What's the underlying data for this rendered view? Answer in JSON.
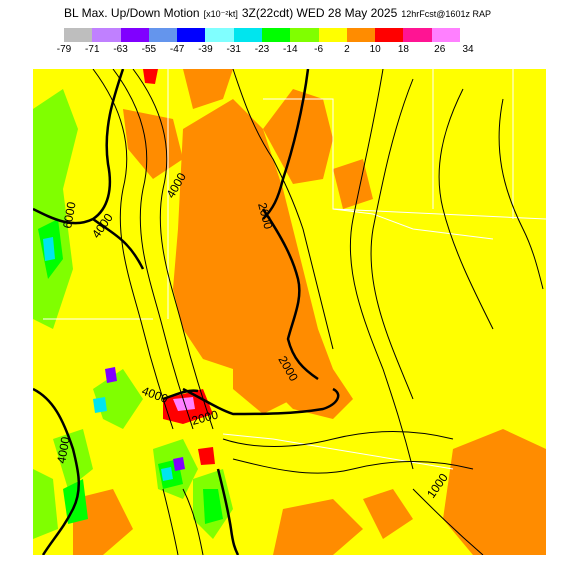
{
  "title": {
    "name": "BL Max. Up/Down Motion",
    "units": "[x10⁻²kt]",
    "valid_time": "3Z(22cdt) WED 28 May 2025",
    "forecast": "12hrFcst@1601z RAP"
  },
  "legend": {
    "colors": [
      "#bebebe",
      "#c080ff",
      "#8000ff",
      "#6495ed",
      "#0000ff",
      "#80ffff",
      "#00e5ee",
      "#00ff00",
      "#80ff00",
      "#ffff00",
      "#ff8c00",
      "#ff0000",
      "#ff1493",
      "#ff80ff"
    ],
    "labels": [
      "-79",
      "-71",
      "-63",
      "-55",
      "-47",
      "-39",
      "-31",
      "-23",
      "-14",
      "-6",
      "2",
      "10",
      "18",
      "26",
      "34"
    ]
  },
  "map": {
    "background_color": "#ffff00",
    "contour_labels": [
      "6000",
      "4000",
      "4000",
      "2000",
      "2000",
      "4000",
      "2000",
      "4000",
      "1000"
    ]
  }
}
